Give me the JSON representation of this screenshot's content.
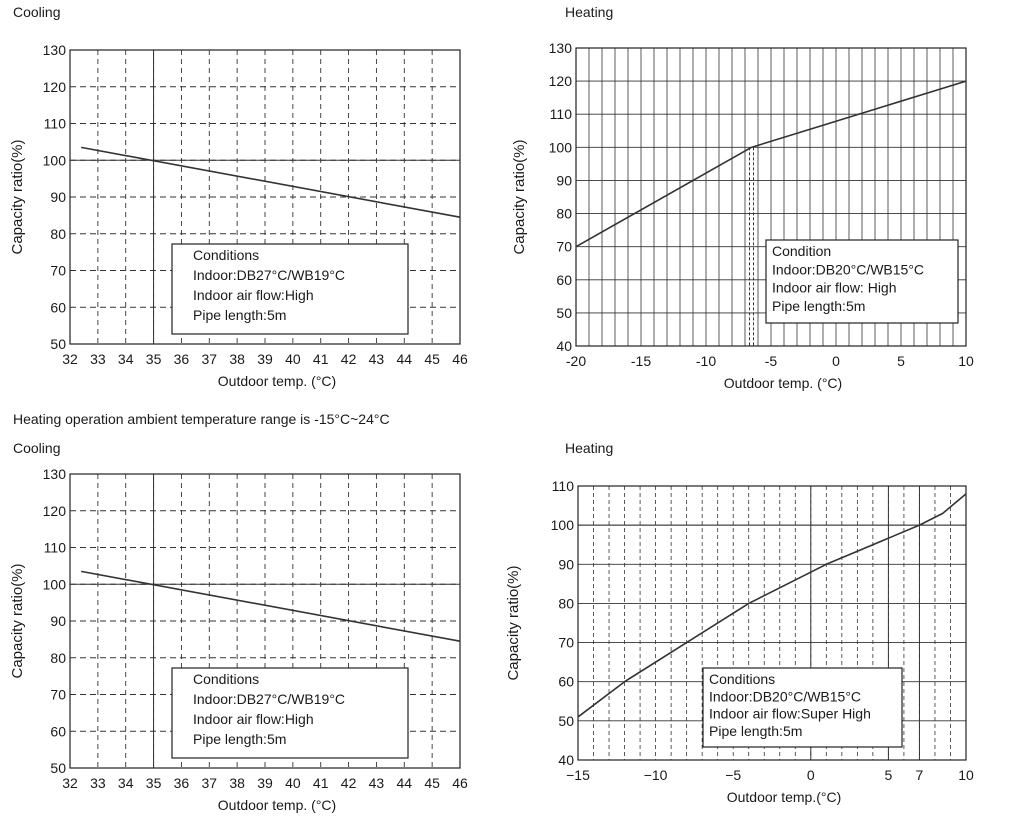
{
  "note": "Heating operation ambient temperature range is -15°C~24°C",
  "chart_data": [
    {
      "type": "line",
      "title": "Cooling",
      "xlabel": "Outdoor temp. (°C)",
      "ylabel": "Capacity ratio(%)",
      "xlim": [
        32,
        46
      ],
      "ylim": [
        50,
        130
      ],
      "x_ticks": [
        32,
        33,
        34,
        35,
        36,
        37,
        38,
        39,
        40,
        41,
        42,
        43,
        44,
        45,
        46
      ],
      "y_ticks": [
        50,
        60,
        70,
        80,
        90,
        100,
        110,
        120,
        130
      ],
      "series": [
        {
          "name": "Capacity ratio",
          "x": [
            32.4,
            46
          ],
          "y": [
            103.5,
            84.5
          ]
        }
      ],
      "legend_title": "Conditions",
      "legend_lines": [
        "Indoor:DB27°C/WB19°C",
        "Indoor air flow:High",
        "Pipe length:5m"
      ]
    },
    {
      "type": "line",
      "title": "Heating",
      "xlabel": "Outdoor temp. (°C)",
      "ylabel": "Capacity ratio(%)",
      "xlim": [
        -20,
        10
      ],
      "ylim": [
        40,
        130
      ],
      "x_ticks": [
        -20,
        -15,
        -10,
        -5,
        0,
        5,
        10
      ],
      "y_ticks": [
        40,
        50,
        60,
        70,
        80,
        90,
        100,
        110,
        120,
        130
      ],
      "series": [
        {
          "name": "Capacity ratio",
          "x": [
            -20,
            -6.5,
            10
          ],
          "y": [
            70,
            100,
            120
          ]
        }
      ],
      "legend_title": "Condition",
      "legend_lines": [
        "Indoor:DB20°C/WB15°C",
        "Indoor air flow: High",
        "Pipe length:5m"
      ]
    },
    {
      "type": "line",
      "title": "Cooling",
      "xlabel": "Outdoor temp. (°C)",
      "ylabel": "Capacity ratio(%)",
      "xlim": [
        32,
        46
      ],
      "ylim": [
        50,
        130
      ],
      "x_ticks": [
        32,
        33,
        34,
        35,
        36,
        37,
        38,
        39,
        40,
        41,
        42,
        43,
        44,
        45,
        46
      ],
      "y_ticks": [
        50,
        60,
        70,
        80,
        90,
        100,
        110,
        120,
        130
      ],
      "series": [
        {
          "name": "Capacity ratio",
          "x": [
            32.4,
            46
          ],
          "y": [
            103.5,
            84.5
          ]
        }
      ],
      "legend_title": "Conditions",
      "legend_lines": [
        "Indoor:DB27°C/WB19°C",
        "Indoor air flow:High",
        "Pipe length:5m"
      ]
    },
    {
      "type": "line",
      "title": "Heating",
      "xlabel": "Outdoor temp.(°C)",
      "ylabel": "Capacity ratio(%)",
      "xlim": [
        -15,
        10
      ],
      "ylim": [
        40,
        110
      ],
      "x_ticks": [
        -15,
        -10,
        -5,
        0,
        5,
        7,
        10
      ],
      "x_tick_labels": [
        "−15",
        "−10",
        "−5",
        "0",
        "5",
        "7",
        "10"
      ],
      "y_ticks": [
        40,
        50,
        60,
        70,
        80,
        90,
        100,
        110
      ],
      "series": [
        {
          "name": "Capacity ratio",
          "x": [
            -15,
            -12,
            -8,
            -4,
            1,
            4,
            7,
            8.5,
            10
          ],
          "y": [
            51,
            60,
            70,
            80,
            90,
            95,
            100,
            103,
            108
          ]
        }
      ],
      "legend_title": "Conditions",
      "legend_lines": [
        "Indoor:DB20°C/WB15°C",
        "Indoor air flow:Super High",
        "Pipe length:5m"
      ]
    }
  ]
}
